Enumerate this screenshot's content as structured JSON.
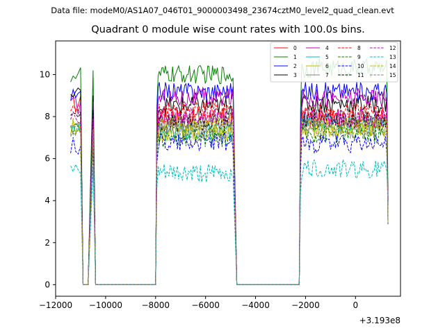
{
  "suptitle": "Data file: modeM0/AS1A07_046T01_9000003498_23674cztM0_level2_quad_clean.evt",
  "chart_data": {
    "type": "line",
    "title": "Quadrant 0 module wise count rates with 100.0s bins.",
    "xlabel": "",
    "ylabel": "",
    "x_offset_label": "+3.193e8",
    "xlim": [
      -12000,
      1800
    ],
    "ylim": [
      -0.55,
      11.6
    ],
    "xticks": [
      -12000,
      -10000,
      -8000,
      -6000,
      -4000,
      -2000,
      0
    ],
    "xtick_labels": [
      "−12000",
      "−10000",
      "−8000",
      "−6000",
      "−4000",
      "−2000",
      "0"
    ],
    "yticks": [
      0,
      2,
      4,
      6,
      8,
      10
    ],
    "ytick_labels": [
      "0",
      "2",
      "4",
      "6",
      "8",
      "10"
    ],
    "grid": false,
    "legend_position": "top-right",
    "legend_columns": 4,
    "segments": [
      {
        "x_start": -11400,
        "x_end": -11000
      },
      {
        "x_start": -10600,
        "x_end": -10300
      },
      {
        "x_start": -8000,
        "x_end": -4900
      },
      {
        "x_start": -2300,
        "x_end": 1300
      }
    ],
    "series": [
      {
        "name": "0",
        "color": "#ff0000",
        "dash": "solid",
        "levels": [
          8.6,
          8.8,
          8.0,
          7.9
        ]
      },
      {
        "name": "1",
        "color": "#008000",
        "dash": "solid",
        "levels": [
          10.0,
          10.2,
          10.0,
          10.3
        ]
      },
      {
        "name": "2",
        "color": "#0000ff",
        "dash": "solid",
        "levels": [
          8.9,
          9.0,
          9.2,
          9.2
        ]
      },
      {
        "name": "3",
        "color": "#000000",
        "dash": "solid",
        "levels": [
          9.0,
          9.0,
          8.5,
          8.6
        ]
      },
      {
        "name": "4",
        "color": "#bf00bf",
        "dash": "solid",
        "levels": [
          8.5,
          8.7,
          8.9,
          8.9
        ]
      },
      {
        "name": "5",
        "color": "#00bfbf",
        "dash": "solid",
        "levels": [
          7.6,
          7.5,
          7.3,
          7.7
        ]
      },
      {
        "name": "6",
        "color": "#bfbf00",
        "dash": "solid",
        "levels": [
          7.4,
          7.3,
          7.2,
          7.4
        ]
      },
      {
        "name": "7",
        "color": "#808080",
        "dash": "solid",
        "levels": [
          7.6,
          7.7,
          7.8,
          7.9
        ]
      },
      {
        "name": "8",
        "color": "#ff0000",
        "dash": "dashed",
        "levels": [
          8.1,
          8.0,
          8.3,
          8.2
        ]
      },
      {
        "name": "9",
        "color": "#008000",
        "dash": "dashed",
        "levels": [
          7.2,
          7.1,
          7.0,
          7.2
        ]
      },
      {
        "name": "10",
        "color": "#0000ff",
        "dash": "dashed",
        "levels": [
          6.6,
          6.6,
          6.8,
          6.7
        ]
      },
      {
        "name": "11",
        "color": "#000000",
        "dash": "dashed",
        "levels": [
          8.2,
          8.3,
          7.7,
          7.8
        ]
      },
      {
        "name": "12",
        "color": "#bf00bf",
        "dash": "dashed",
        "levels": [
          7.8,
          7.9,
          8.0,
          7.9
        ]
      },
      {
        "name": "13",
        "color": "#00bfbf",
        "dash": "dashed",
        "levels": [
          5.4,
          5.6,
          5.3,
          5.5
        ]
      },
      {
        "name": "14",
        "color": "#bfbf00",
        "dash": "dashed",
        "levels": [
          7.5,
          7.4,
          7.6,
          7.5
        ]
      },
      {
        "name": "15",
        "color": "#808080",
        "dash": "dashed",
        "levels": [
          7.3,
          7.2,
          7.2,
          7.4
        ]
      }
    ]
  }
}
